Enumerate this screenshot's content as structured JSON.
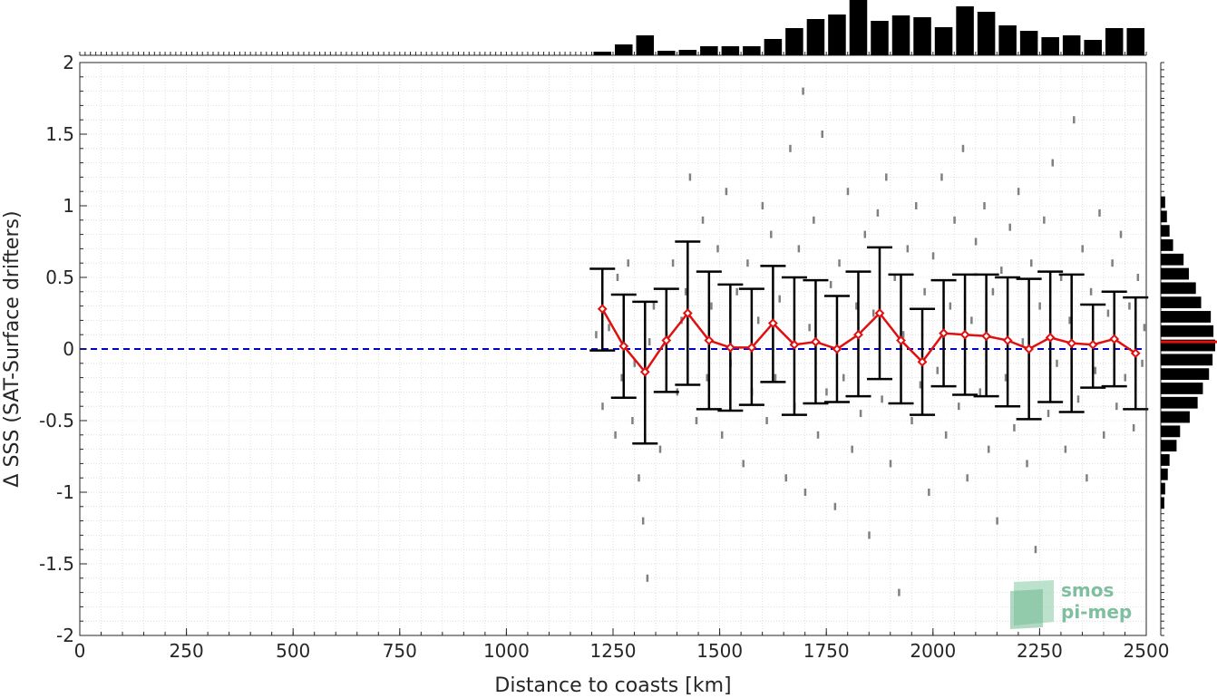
{
  "chart_data": {
    "type": "scatter",
    "xlabel": "Distance to coasts [km]",
    "ylabel": "Δ SSS (SAT-Surface drifters)",
    "xlim": [
      0,
      2500
    ],
    "ylim": [
      -2,
      2
    ],
    "x_ticks": [
      "0",
      "250",
      "500",
      "750",
      "1000",
      "1250",
      "1500",
      "1750",
      "2000",
      "2250",
      "2500"
    ],
    "y_ticks": [
      "-2",
      "-1.5",
      "-1",
      "-0.5",
      "0",
      "0.5",
      "1",
      "1.5",
      "2"
    ],
    "grid": true,
    "zero_line": {
      "y": 0,
      "color": "#0000cc",
      "style": "dashed"
    },
    "binned_mean": {
      "color": "#e01010",
      "x": [
        1225,
        1275,
        1325,
        1375,
        1425,
        1475,
        1525,
        1575,
        1625,
        1675,
        1725,
        1775,
        1825,
        1875,
        1925,
        1975,
        2025,
        2075,
        2125,
        2175,
        2225,
        2275,
        2325,
        2375,
        2425,
        2475
      ],
      "mean": [
        0.28,
        0.02,
        -0.16,
        0.06,
        0.25,
        0.06,
        0.01,
        0.01,
        0.18,
        0.03,
        0.05,
        0.0,
        0.1,
        0.25,
        0.06,
        -0.09,
        0.11,
        0.1,
        0.09,
        0.06,
        0.0,
        0.08,
        0.04,
        0.03,
        0.07,
        -0.03
      ],
      "upper": [
        0.56,
        0.38,
        0.33,
        0.42,
        0.75,
        0.54,
        0.45,
        0.42,
        0.58,
        0.5,
        0.48,
        0.37,
        0.54,
        0.71,
        0.52,
        0.28,
        0.48,
        0.52,
        0.52,
        0.5,
        0.49,
        0.54,
        0.52,
        0.31,
        0.4,
        0.36
      ]
    },
    "binned_lower": [
      -0.01,
      -0.34,
      -0.66,
      -0.3,
      -0.25,
      -0.42,
      -0.43,
      -0.39,
      -0.23,
      -0.46,
      -0.38,
      -0.37,
      -0.33,
      -0.21,
      -0.38,
      -0.46,
      -0.26,
      -0.32,
      -0.33,
      -0.4,
      -0.49,
      -0.37,
      -0.44,
      -0.27,
      -0.26,
      -0.42
    ],
    "top_histogram": {
      "bin_centers": [
        1225,
        1275,
        1325,
        1375,
        1425,
        1475,
        1525,
        1575,
        1625,
        1675,
        1725,
        1775,
        1825,
        1875,
        1925,
        1975,
        2025,
        2075,
        2125,
        2175,
        2225,
        2275,
        2325,
        2375,
        2425,
        2475
      ],
      "counts": [
        4,
        12,
        22,
        5,
        6,
        10,
        10,
        10,
        18,
        30,
        40,
        45,
        62,
        38,
        44,
        42,
        31,
        54,
        48,
        33,
        27,
        20,
        22,
        17,
        30,
        30
      ]
    },
    "right_histogram": {
      "bin_centers": [
        -1.075,
        -0.975,
        -0.875,
        -0.775,
        -0.675,
        -0.575,
        -0.475,
        -0.375,
        -0.275,
        -0.175,
        -0.075,
        0.025,
        0.125,
        0.225,
        0.325,
        0.425,
        0.525,
        0.625,
        0.725,
        0.825,
        0.925,
        1.025
      ],
      "counts": [
        4,
        5,
        8,
        10,
        18,
        22,
        33,
        42,
        48,
        55,
        59,
        62,
        60,
        57,
        46,
        40,
        32,
        26,
        14,
        10,
        7,
        5
      ],
      "median_color": "#e01010"
    },
    "scatter": {
      "color": "#808080",
      "points": [
        [
          1210,
          0.1
        ],
        [
          1225,
          -0.4
        ],
        [
          1240,
          0.15
        ],
        [
          1255,
          -0.6
        ],
        [
          1260,
          0.5
        ],
        [
          1270,
          -0.2
        ],
        [
          1285,
          0.6
        ],
        [
          1295,
          -0.5
        ],
        [
          1300,
          -0.1
        ],
        [
          1310,
          -0.9
        ],
        [
          1320,
          -1.2
        ],
        [
          1330,
          -1.6
        ],
        [
          1335,
          0.05
        ],
        [
          1345,
          0.3
        ],
        [
          1360,
          -0.7
        ],
        [
          1375,
          0.1
        ],
        [
          1390,
          0.6
        ],
        [
          1400,
          -0.3
        ],
        [
          1410,
          0.2
        ],
        [
          1420,
          0.4
        ],
        [
          1430,
          1.2
        ],
        [
          1445,
          -0.5
        ],
        [
          1460,
          0.9
        ],
        [
          1470,
          -0.2
        ],
        [
          1480,
          0.3
        ],
        [
          1495,
          0.7
        ],
        [
          1505,
          -0.6
        ],
        [
          1515,
          1.1
        ],
        [
          1525,
          -0.1
        ],
        [
          1540,
          0.4
        ],
        [
          1555,
          -0.8
        ],
        [
          1565,
          0.6
        ],
        [
          1575,
          -0.3
        ],
        [
          1590,
          0.2
        ],
        [
          1600,
          1.0
        ],
        [
          1610,
          -0.5
        ],
        [
          1620,
          0.8
        ],
        [
          1630,
          -0.2
        ],
        [
          1640,
          0.35
        ],
        [
          1655,
          -0.9
        ],
        [
          1665,
          1.4
        ],
        [
          1675,
          -0.4
        ],
        [
          1685,
          0.7
        ],
        [
          1695,
          1.8
        ],
        [
          1700,
          -1.0
        ],
        [
          1710,
          0.15
        ],
        [
          1720,
          0.9
        ],
        [
          1730,
          -0.6
        ],
        [
          1740,
          1.5
        ],
        [
          1750,
          -0.3
        ],
        [
          1760,
          0.45
        ],
        [
          1770,
          -1.1
        ],
        [
          1780,
          0.6
        ],
        [
          1790,
          -0.2
        ],
        [
          1800,
          1.1
        ],
        [
          1810,
          -0.7
        ],
        [
          1820,
          0.3
        ],
        [
          1830,
          -0.45
        ],
        [
          1840,
          0.8
        ],
        [
          1850,
          -1.3
        ],
        [
          1860,
          0.25
        ],
        [
          1870,
          0.95
        ],
        [
          1880,
          -0.35
        ],
        [
          1890,
          1.2
        ],
        [
          1900,
          -0.8
        ],
        [
          1910,
          0.5
        ],
        [
          1920,
          -1.7
        ],
        [
          1930,
          0.1
        ],
        [
          1940,
          0.7
        ],
        [
          1950,
          -0.5
        ],
        [
          1960,
          1.0
        ],
        [
          1970,
          -0.25
        ],
        [
          1980,
          0.4
        ],
        [
          1990,
          -1.0
        ],
        [
          2000,
          0.65
        ],
        [
          2010,
          -0.15
        ],
        [
          2020,
          1.2
        ],
        [
          2030,
          -0.6
        ],
        [
          2040,
          0.3
        ],
        [
          2050,
          0.9
        ],
        [
          2060,
          -0.4
        ],
        [
          2070,
          1.4
        ],
        [
          2080,
          -0.9
        ],
        [
          2090,
          0.2
        ],
        [
          2100,
          0.75
        ],
        [
          2110,
          -0.3
        ],
        [
          2120,
          1.0
        ],
        [
          2130,
          -0.7
        ],
        [
          2140,
          0.4
        ],
        [
          2150,
          -1.2
        ],
        [
          2160,
          0.55
        ],
        [
          2170,
          -0.2
        ],
        [
          2180,
          0.85
        ],
        [
          2190,
          -0.55
        ],
        [
          2200,
          1.1
        ],
        [
          2210,
          0.05
        ],
        [
          2220,
          -0.8
        ],
        [
          2230,
          0.6
        ],
        [
          2240,
          -1.4
        ],
        [
          2250,
          0.3
        ],
        [
          2260,
          0.9
        ],
        [
          2270,
          -0.45
        ],
        [
          2280,
          1.3
        ],
        [
          2290,
          -0.1
        ],
        [
          2300,
          0.5
        ],
        [
          2310,
          -0.7
        ],
        [
          2320,
          0.2
        ],
        [
          2330,
          1.6
        ],
        [
          2340,
          -0.35
        ],
        [
          2350,
          0.7
        ],
        [
          2360,
          -0.9
        ],
        [
          2370,
          0.4
        ],
        [
          2380,
          -0.15
        ],
        [
          2390,
          0.95
        ],
        [
          2400,
          -0.6
        ],
        [
          2410,
          0.25
        ],
        [
          2420,
          0.6
        ],
        [
          2430,
          -0.4
        ],
        [
          2440,
          0.8
        ],
        [
          2450,
          -0.2
        ],
        [
          2460,
          0.3
        ],
        [
          2470,
          -0.55
        ],
        [
          2480,
          0.5
        ],
        [
          2490,
          -0.1
        ],
        [
          2495,
          0.15
        ]
      ]
    }
  },
  "watermark": {
    "line1": "smos",
    "line2": "pi-mep"
  }
}
